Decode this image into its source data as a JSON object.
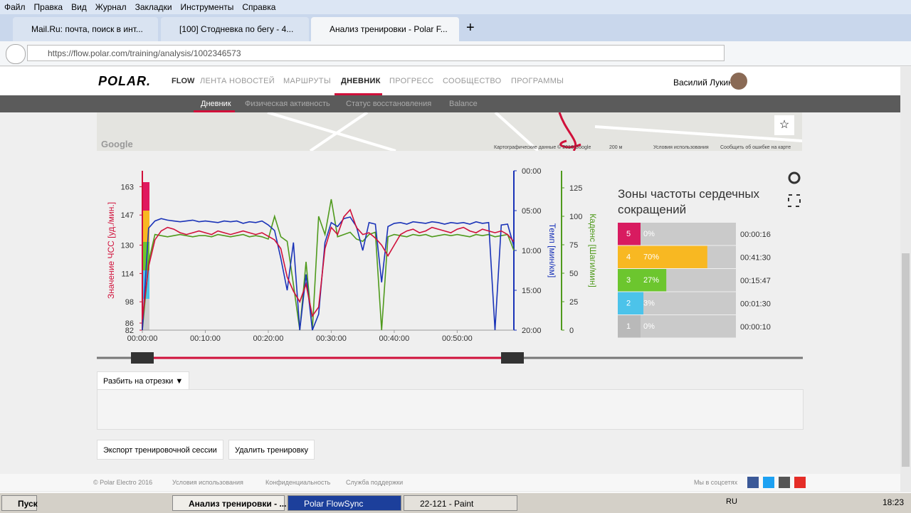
{
  "menu": [
    "Файл",
    "Правка",
    "Вид",
    "Журнал",
    "Закладки",
    "Инструменты",
    "Справка"
  ],
  "tabs": [
    "Mail.Ru: почта, поиск в инт...",
    "[100] Стодневка по бегу - 4...",
    "Анализ тренировки - Polar F..."
  ],
  "url": "https://flow.polar.com/training/analysis/1002346573",
  "brand": {
    "logo": "POLAR.",
    "product": "FLOW"
  },
  "nav": [
    "ЛЕНТА НОВОСТЕЙ",
    "МАРШРУТЫ",
    "ДНЕВНИК",
    "ПРОГРЕСС",
    "СООБЩЕСТВО",
    "ПРОГРАММЫ"
  ],
  "user": "Василий Лукин",
  "subnav": [
    "Дневник",
    "Физическая активность",
    "Статус восстановления",
    "Balance"
  ],
  "map": {
    "logo": "Google",
    "attribution": "Картографические данные © 2016 Google",
    "scale": "200 м",
    "terms": "Условия использования",
    "report": "Сообщить об ошибке на карте"
  },
  "chart_data": [
    {
      "type": "line",
      "x": [
        0,
        1,
        2,
        3,
        4,
        5,
        6,
        7,
        8,
        9,
        10,
        11,
        12,
        13,
        14,
        15,
        16,
        17,
        18,
        19,
        20,
        21,
        22,
        23,
        24,
        25,
        26,
        27,
        28,
        29,
        30,
        31,
        32,
        33,
        34,
        35,
        36,
        37,
        38,
        39,
        40,
        41,
        42,
        43,
        44,
        45,
        46,
        47,
        48,
        49,
        50,
        51,
        52,
        53,
        54,
        55,
        56,
        57,
        58,
        59
      ],
      "xlim": [
        0,
        59
      ],
      "xticks": [
        {
          "value": 0,
          "label": "00:00:00"
        },
        {
          "value": 10,
          "label": "00:10:00"
        },
        {
          "value": 20,
          "label": "00:20:00"
        },
        {
          "value": 30,
          "label": "00:30:00"
        },
        {
          "value": 40,
          "label": "00:40:00"
        },
        {
          "value": 50,
          "label": "00:50:00"
        }
      ],
      "ylabel": "Значение ЧСС [уд./мин.]",
      "ylim": [
        82,
        172
      ],
      "yticks": [
        82,
        86,
        98,
        114,
        130,
        147,
        163
      ],
      "y2label": "Темп [мин/км]",
      "y2lim": [
        20,
        0
      ],
      "y2ticks": [
        {
          "value": 0,
          "label": "00:00"
        },
        {
          "value": 5,
          "label": "05:00"
        },
        {
          "value": 10,
          "label": "10:00"
        },
        {
          "value": 15,
          "label": "15:00"
        },
        {
          "value": 20,
          "label": "20:00"
        }
      ],
      "y3label": "Каденс [Шаги/мин]",
      "y3lim": [
        0,
        140
      ],
      "y3ticks": [
        0,
        25,
        50,
        75,
        100,
        125
      ],
      "series": [
        {
          "color": "#d0103a",
          "axis": "y",
          "values": [
            88,
            118,
            133,
            138,
            140,
            139,
            137,
            136,
            137,
            138,
            137,
            136,
            138,
            137,
            136,
            137,
            138,
            137,
            136,
            137,
            135,
            133,
            128,
            112,
            104,
            98,
            108,
            90,
            95,
            128,
            140,
            136,
            146,
            150,
            140,
            136,
            137,
            134,
            130,
            124,
            130,
            136,
            138,
            139,
            137,
            138,
            140,
            139,
            138,
            137,
            139,
            140,
            138,
            137,
            139,
            138,
            137,
            138,
            136,
            132
          ]
        },
        {
          "color": "#1a33b8",
          "axis": "y2",
          "values": [
            20,
            7.2,
            6.3,
            6.0,
            6.2,
            6.3,
            6.4,
            6.3,
            6.2,
            6.4,
            6.3,
            6.4,
            6.5,
            6.3,
            6.4,
            6.3,
            6.6,
            6.4,
            6.5,
            6.3,
            6.8,
            7.5,
            11,
            15,
            9,
            20,
            13,
            20,
            18,
            9,
            6.5,
            7,
            6,
            5.8,
            7,
            10,
            6.5,
            6.7,
            14,
            7,
            6.6,
            6.5,
            6.7,
            6.4,
            6.5,
            6.6,
            6.4,
            6.5,
            6.7,
            6.5,
            6.6,
            6.5,
            6.7,
            6.4,
            6.6,
            6.5,
            20,
            6.8,
            6.7,
            9.5
          ]
        },
        {
          "color": "#4f9a1c",
          "axis": "y3",
          "values": [
            0,
            60,
            84,
            83,
            82,
            83,
            84,
            83,
            82,
            83,
            83,
            82,
            84,
            83,
            82,
            83,
            84,
            82,
            83,
            82,
            80,
            100,
            82,
            78,
            40,
            0,
            60,
            0,
            100,
            84,
            115,
            82,
            84,
            86,
            80,
            78,
            84,
            86,
            0,
            82,
            84,
            83,
            82,
            84,
            83,
            84,
            82,
            83,
            84,
            83,
            84,
            83,
            82,
            84,
            83,
            84,
            82,
            83,
            84,
            70
          ]
        }
      ]
    },
    {
      "type": "bar",
      "title": "Зоны частоты сердечных сокращений",
      "categories": [
        "5",
        "4",
        "3",
        "2",
        "1"
      ],
      "values": [
        0,
        70,
        27,
        3,
        0
      ],
      "value_labels": [
        "0%",
        "70%",
        "27%",
        "3%",
        "0%"
      ],
      "time_labels": [
        "00:00:16",
        "00:41:30",
        "00:15:47",
        "00:01:30",
        "00:00:10"
      ],
      "colors": [
        "#d81b60",
        "#f8b822",
        "#6cc62e",
        "#4cc3ea",
        "#b9b9b9"
      ],
      "xlim": [
        0,
        100
      ]
    }
  ],
  "split_button": "Разбить на отрезки",
  "actions": [
    "Экспорт тренировочной сессии",
    "Удалить тренировку"
  ],
  "footer": {
    "copyright": "© Polar Electro 2016",
    "links": [
      "Условия использования",
      "Конфиденциальность",
      "Служба поддержки"
    ],
    "social": "Мы в соцсетях"
  },
  "taskbar": {
    "start": "Пуск",
    "windows": [
      "Анализ тренировки - ...",
      "Polar FlowSync",
      "22-121 - Paint"
    ],
    "lang": "RU",
    "clock": "18:23"
  }
}
